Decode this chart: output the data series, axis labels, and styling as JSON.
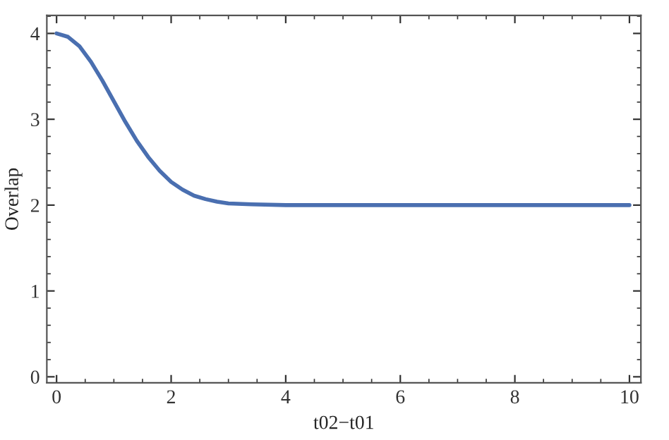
{
  "chart_data": {
    "type": "line",
    "xlabel": "t02−t01",
    "ylabel": "Overlap",
    "x": [
      0,
      0.2,
      0.4,
      0.6,
      0.8,
      1.0,
      1.2,
      1.4,
      1.6,
      1.8,
      2.0,
      2.2,
      2.4,
      2.6,
      2.8,
      3.0,
      3.4,
      4.0,
      6.0,
      8.0,
      10.0
    ],
    "series": [
      {
        "color": "#4a6fb0",
        "values": [
          4.0,
          3.96,
          3.85,
          3.67,
          3.45,
          3.21,
          2.97,
          2.75,
          2.56,
          2.4,
          2.27,
          2.18,
          2.11,
          2.07,
          2.04,
          2.02,
          2.01,
          2.0,
          2.0,
          2.0,
          2.0
        ]
      }
    ],
    "xlim": [
      -0.17,
      10.2
    ],
    "ylim": [
      -0.07,
      4.21
    ],
    "xticks": [
      0,
      2,
      4,
      6,
      8,
      10
    ],
    "yticks": [
      0,
      1,
      2,
      3,
      4
    ],
    "grid": false,
    "legend": false,
    "marker": "none",
    "line_style": "solid"
  }
}
